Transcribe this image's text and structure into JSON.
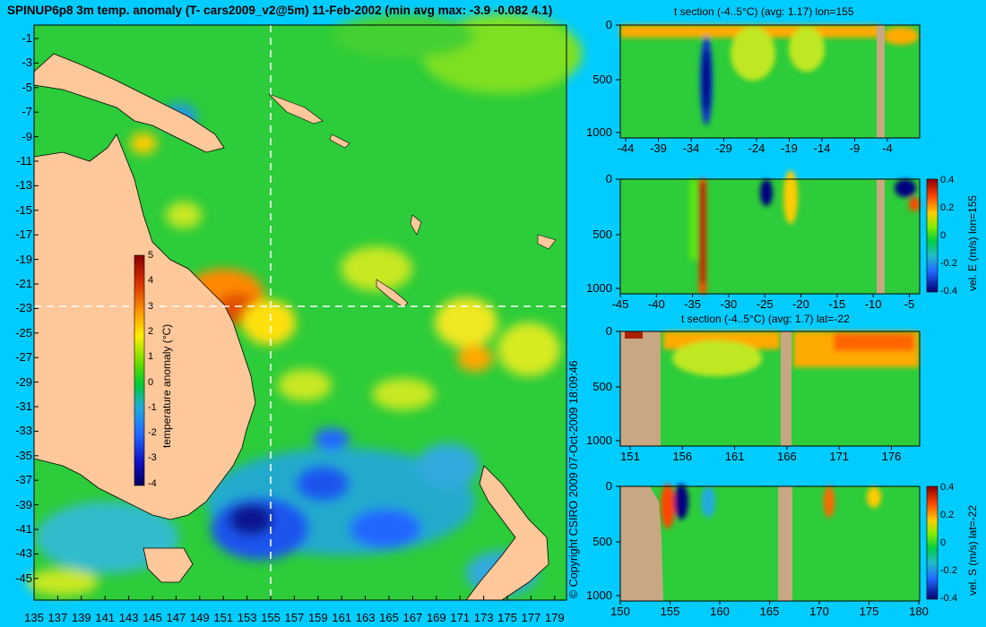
{
  "map": {
    "title": "SPINUP6p8 3m temp. anomaly (T- cars2009_v2@5m) 11-Feb-2002 (min avg max: -3.9 -0.082 4.1)",
    "lat_ticks": [
      "-1",
      "-3",
      "-5",
      "-7",
      "-9",
      "-11",
      "-13",
      "-15",
      "-17",
      "-19",
      "-21",
      "-23",
      "-25",
      "-27",
      "-29",
      "-31",
      "-33",
      "-35",
      "-37",
      "-39",
      "-41",
      "-43",
      "-45"
    ],
    "lon_ticks": [
      "135",
      "137",
      "139",
      "141",
      "143",
      "145",
      "147",
      "149",
      "151",
      "153",
      "155",
      "157",
      "159",
      "161",
      "163",
      "165",
      "167",
      "169",
      "171",
      "173",
      "175",
      "177",
      "179"
    ],
    "colorbar": {
      "label": "temperature anomaly (°C)",
      "ticks": [
        "5",
        "4",
        "3",
        "2",
        "1",
        "0",
        "-1",
        "-2",
        "-3",
        "-4"
      ]
    },
    "crosshair": {
      "lon": 155,
      "lat": -22
    }
  },
  "copyright": "© Copyright CSIRO 2009   07-Oct-2009 18:09:46",
  "panels": [
    {
      "title": "t section (-4..5°C) (avg: 1.17) lon=155",
      "y_ticks": [
        "0",
        "500",
        "1000"
      ],
      "x_ticks": [
        "-44",
        "-39",
        "-34",
        "-29",
        "-24",
        "-19",
        "-14",
        "-9",
        "-4"
      ]
    },
    {
      "title": "",
      "y_ticks": [
        "0",
        "500",
        "1000"
      ],
      "x_ticks": [
        "-45",
        "-40",
        "-35",
        "-30",
        "-25",
        "-20",
        "-15",
        "-10",
        "-5"
      ],
      "colorbar": {
        "label": "vel. E (m/s) lon=155",
        "ticks": [
          "0.4",
          "0.2",
          "0",
          "-0.2",
          "-0.4"
        ]
      }
    },
    {
      "title": "t section (-4..5°C) (avg: 1.7) lat=-22",
      "y_ticks": [
        "0",
        "500",
        "1000"
      ],
      "x_ticks": [
        "151",
        "156",
        "161",
        "166",
        "171",
        "176"
      ]
    },
    {
      "title": "",
      "y_ticks": [
        "0",
        "500",
        "1000"
      ],
      "x_ticks": [
        "150",
        "155",
        "160",
        "165",
        "170",
        "175",
        "180"
      ],
      "colorbar": {
        "label": "vel. S (m/s) lat=-22",
        "ticks": [
          "0.4",
          "0.2",
          "0",
          "-0.2",
          "-0.4"
        ]
      }
    }
  ]
}
